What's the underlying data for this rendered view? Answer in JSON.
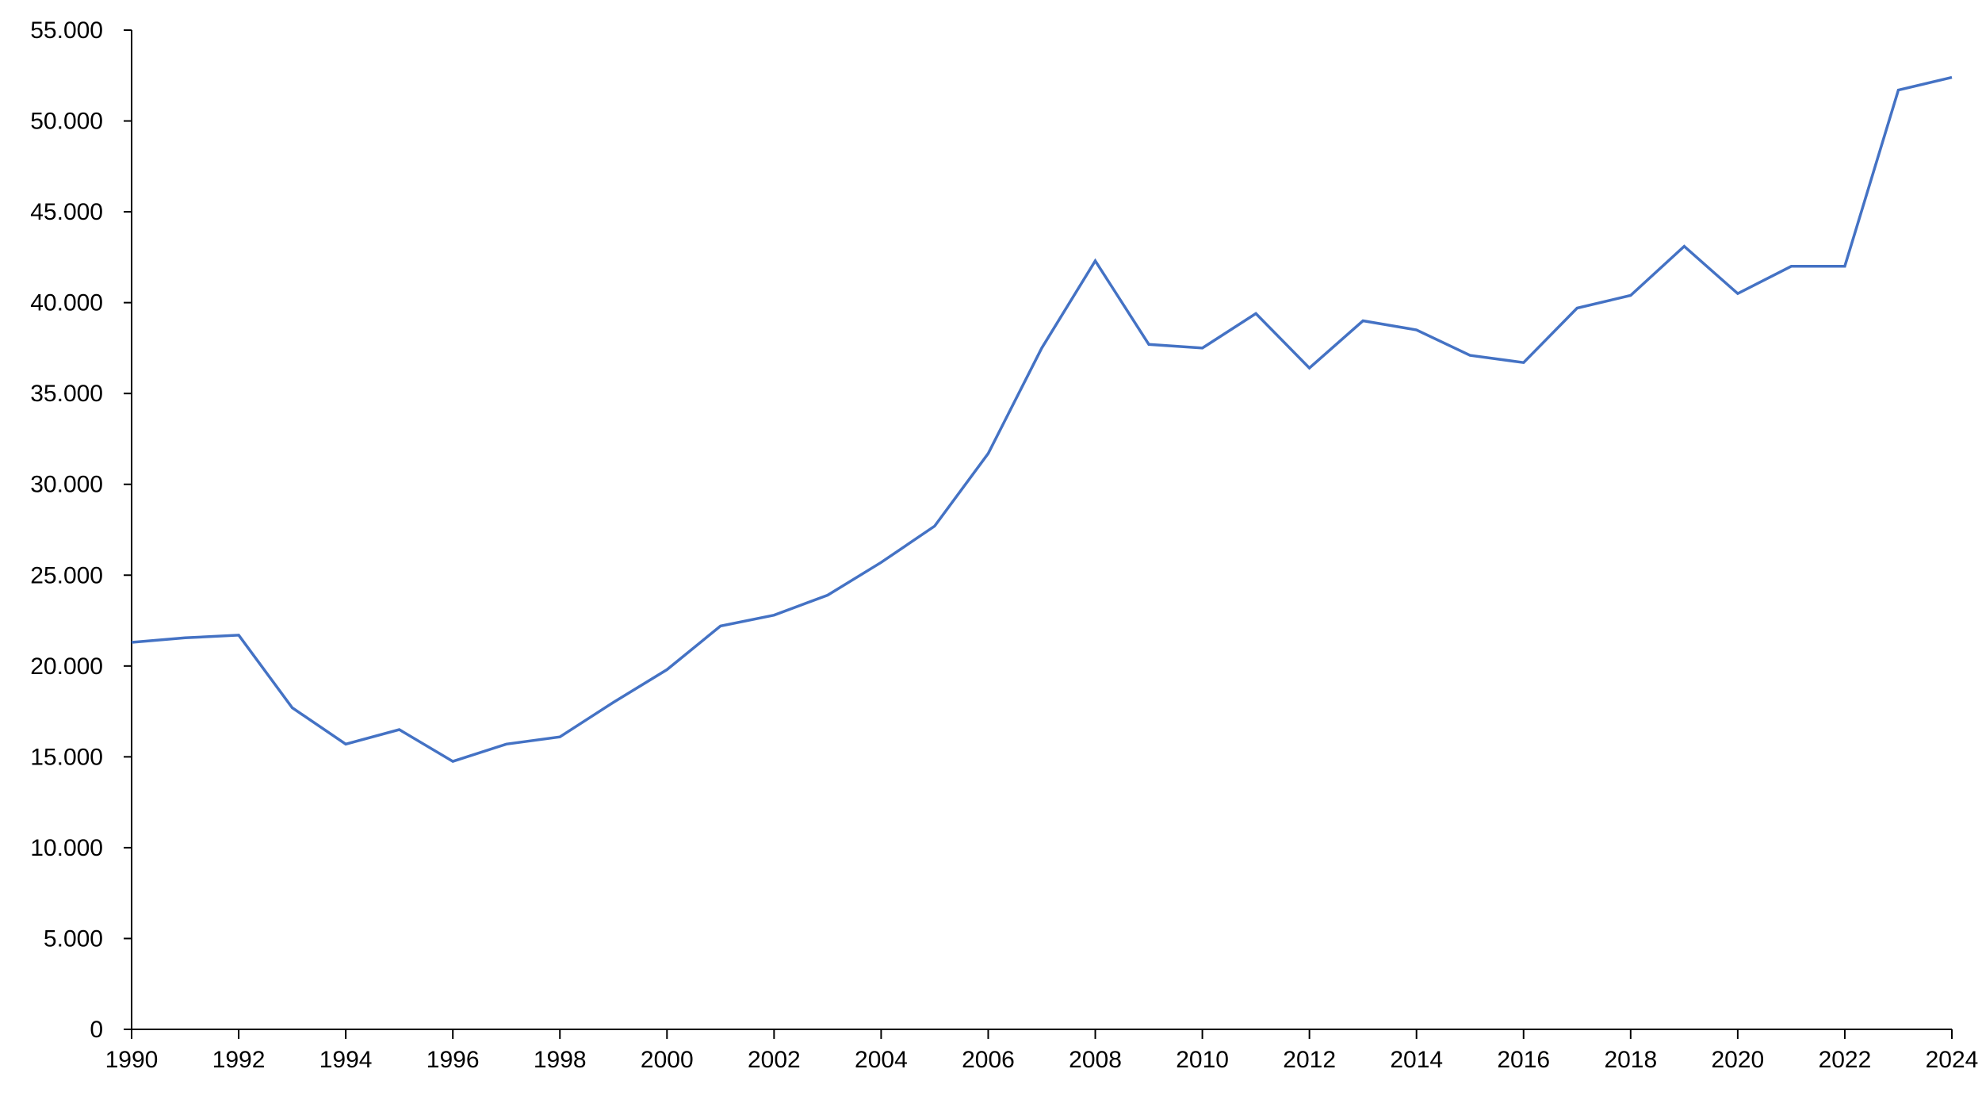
{
  "chart_data": {
    "type": "line",
    "title": "",
    "xlabel": "",
    "ylabel": "",
    "xlim": [
      1990,
      2024
    ],
    "ylim": [
      0,
      55000
    ],
    "grid": false,
    "legend": "none",
    "x_ticks": [
      1990,
      1992,
      1994,
      1996,
      1998,
      2000,
      2002,
      2004,
      2006,
      2008,
      2010,
      2012,
      2014,
      2016,
      2018,
      2020,
      2022,
      2024
    ],
    "x_tick_labels": [
      "1990",
      "1992",
      "1994",
      "1996",
      "1998",
      "2000",
      "2002",
      "2004",
      "2006",
      "2008",
      "2010",
      "2012",
      "2014",
      "2016",
      "2018",
      "2020",
      "2022",
      "2024"
    ],
    "y_ticks": [
      0,
      5000,
      10000,
      15000,
      20000,
      25000,
      30000,
      35000,
      40000,
      45000,
      50000,
      55000
    ],
    "y_tick_labels": [
      "0",
      "5.000",
      "10.000",
      "15.000",
      "20.000",
      "25.000",
      "30.000",
      "35.000",
      "40.000",
      "45.000",
      "50.000",
      "55.000"
    ],
    "series": [
      {
        "color": "#4472C4",
        "x": [
          1990,
          1991,
          1992,
          1993,
          1994,
          1995,
          1996,
          1997,
          1998,
          1999,
          2000,
          2001,
          2002,
          2003,
          2004,
          2005,
          2006,
          2007,
          2008,
          2009,
          2010,
          2011,
          2012,
          2013,
          2014,
          2015,
          2016,
          2017,
          2018,
          2019,
          2020,
          2021,
          2022,
          2023,
          2024
        ],
        "values": [
          21300,
          21550,
          21700,
          17700,
          15700,
          16500,
          14750,
          15700,
          16100,
          18000,
          19800,
          22200,
          22800,
          23900,
          25700,
          27700,
          31700,
          37500,
          42300,
          37700,
          37500,
          39400,
          36400,
          39000,
          38500,
          37100,
          36700,
          39700,
          40400,
          43100,
          40500,
          42000,
          42000,
          51700,
          52400
        ]
      }
    ]
  }
}
